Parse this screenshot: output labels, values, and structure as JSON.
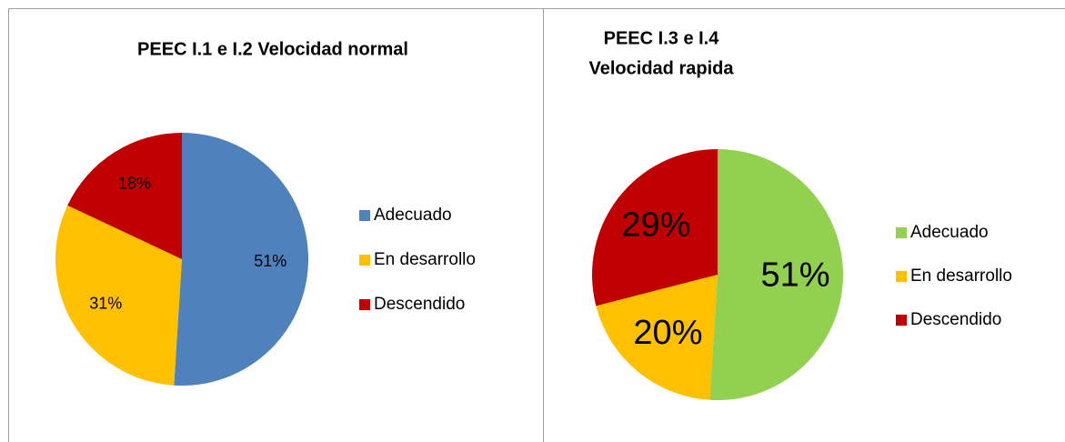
{
  "chart_data": [
    {
      "type": "pie",
      "title": [
        "PEEC I.1 e I.2 Velocidad normal"
      ],
      "categories": [
        "Adecuado",
        "En desarrollo",
        "Descendido"
      ],
      "values": [
        51,
        31,
        18
      ],
      "value_labels": [
        "51%",
        "31%",
        "18%"
      ],
      "colors": [
        "#4f81bd",
        "#ffc000",
        "#c00000"
      ],
      "legend": "right"
    },
    {
      "type": "pie",
      "title": [
        "PEEC I.3 e I.4",
        "Velocidad rapida"
      ],
      "categories": [
        "Adecuado",
        "En desarrollo",
        "Descendido"
      ],
      "values": [
        51,
        20,
        29
      ],
      "value_labels": [
        "51%",
        "20%",
        "29%"
      ],
      "colors": [
        "#92d050",
        "#ffc000",
        "#c00000"
      ],
      "legend": "right"
    }
  ]
}
